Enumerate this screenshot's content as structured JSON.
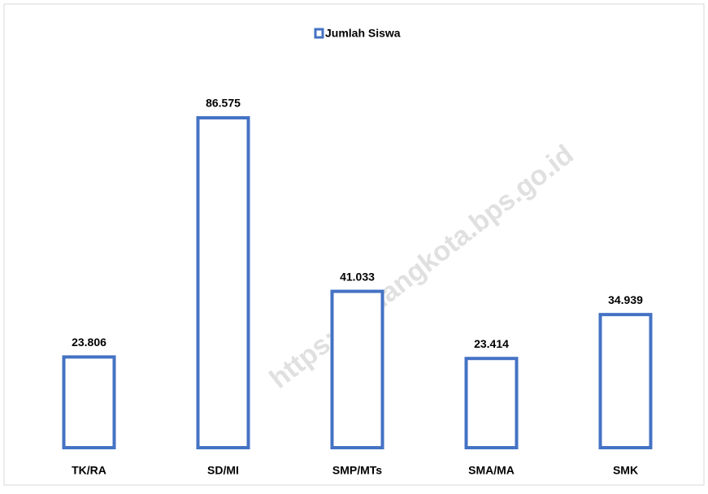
{
  "chart_data": {
    "type": "bar",
    "legend": "Jumlah Siswa",
    "categories": [
      "TK/RA",
      "SD/MI",
      "SMP/MTs",
      "SMA/MA",
      "SMK"
    ],
    "values": [
      23806,
      86575,
      41033,
      23414,
      34939
    ],
    "value_labels": [
      "23.806",
      "86.575",
      "41.033",
      "23.414",
      "34.939"
    ],
    "color": "#4472c4",
    "watermark": "https://malangkota.bps.go.id"
  }
}
